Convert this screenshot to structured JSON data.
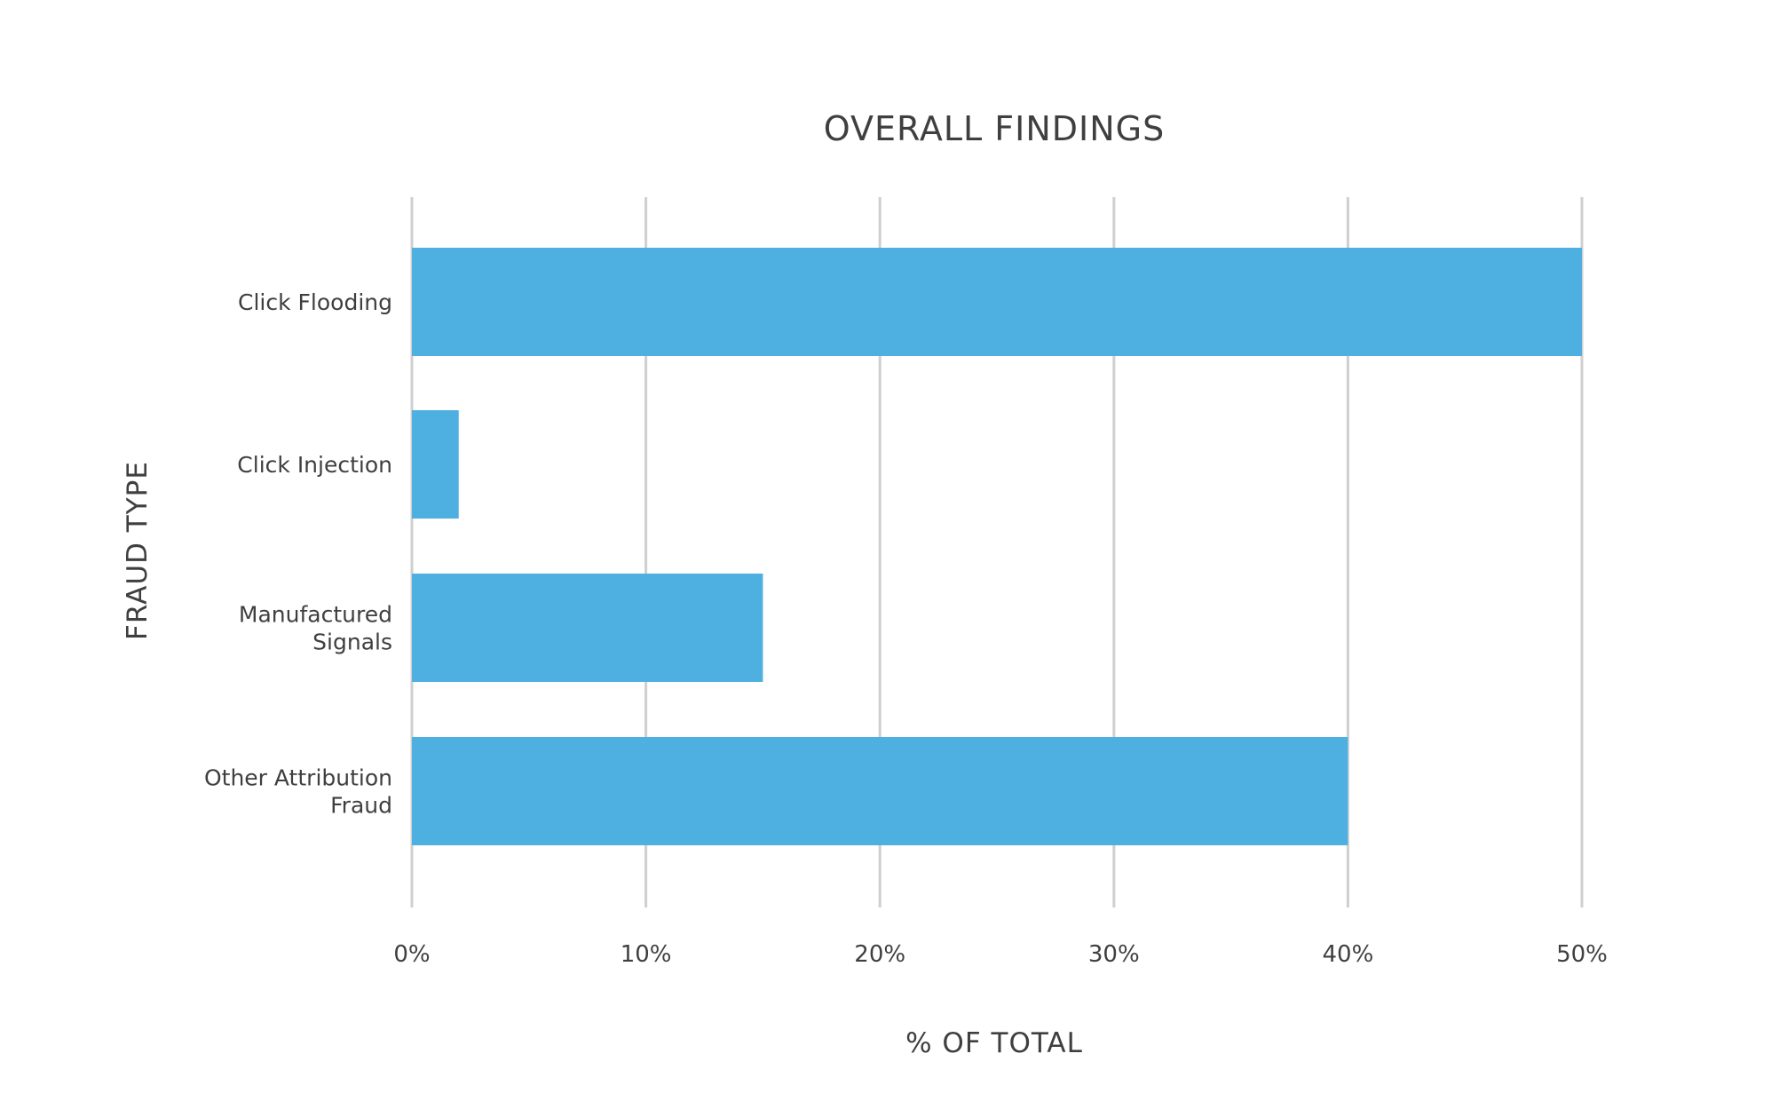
{
  "chart_data": {
    "type": "bar",
    "orientation": "horizontal",
    "title": "OVERALL FINDINGS",
    "xlabel": "% OF TOTAL",
    "ylabel": "FRAUD TYPE",
    "categories": [
      [
        "Click Flooding"
      ],
      [
        "Click Injection"
      ],
      [
        "Manufactured",
        "Signals"
      ],
      [
        "Other Attribution",
        "Fraud"
      ]
    ],
    "values": [
      50,
      2,
      15,
      40
    ],
    "xlim": [
      0,
      50
    ],
    "xticks": [
      0,
      10,
      20,
      30,
      40,
      50
    ],
    "xtick_labels": [
      "0%",
      "10%",
      "20%",
      "30%",
      "40%",
      "50%"
    ],
    "grid": "vertical",
    "legend": "none",
    "colors": {
      "bar": "#4db0e0",
      "grid": "#cfcfcf",
      "text": "#3f3f3f"
    }
  }
}
